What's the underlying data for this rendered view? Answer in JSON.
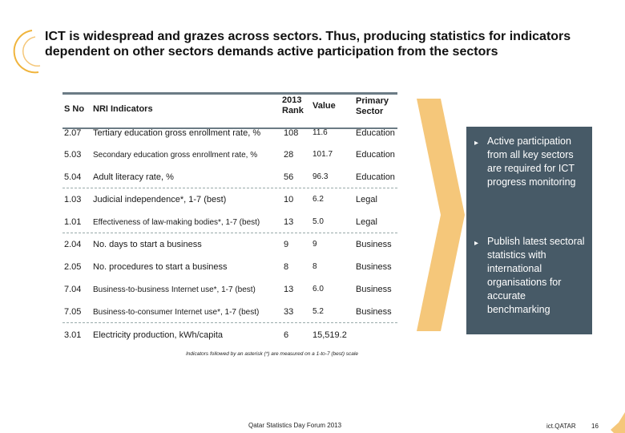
{
  "title": "ICT is widespread and grazes across sectors. Thus, producing statistics for indicators dependent on other sectors demands active participation from the sectors",
  "table": {
    "headers": {
      "sno": "S No",
      "indicator": "NRI Indicators",
      "rank_line1": "2013",
      "rank_line2": "Rank",
      "value": "Value",
      "sector_line1": "Primary",
      "sector_line2": "Sector"
    },
    "rows": [
      {
        "sno": "2.07",
        "indicator": "Tertiary education gross enrollment rate, %",
        "rank": "108",
        "value": "11.6",
        "sector": "Education"
      },
      {
        "sno": "5.03",
        "indicator": "Secondary education gross enrollment rate, %",
        "rank": "28",
        "value": "101.7",
        "sector": "Education"
      },
      {
        "sno": "5.04",
        "indicator": "Adult literacy rate, %",
        "rank": "56",
        "value": "96.3",
        "sector": "Education"
      },
      {
        "sno": "1.03",
        "indicator": "Judicial independence*, 1-7 (best)",
        "rank": "10",
        "value": "6.2",
        "sector": "Legal"
      },
      {
        "sno": "1.01",
        "indicator": "Effectiveness of law-making bodies*, 1-7 (best)",
        "rank": "13",
        "value": "5.0",
        "sector": "Legal"
      },
      {
        "sno": "2.04",
        "indicator": "No. days to start a business",
        "rank": "9",
        "value": "9",
        "sector": "Business"
      },
      {
        "sno": "2.05",
        "indicator": "No. procedures to start a business",
        "rank": "8",
        "value": "8",
        "sector": "Business"
      },
      {
        "sno": "7.04",
        "indicator": "Business-to-business Internet use*, 1-7 (best)",
        "rank": "13",
        "value": "6.0",
        "sector": "Business"
      },
      {
        "sno": "7.05",
        "indicator": "Business-to-consumer Internet use*, 1-7 (best)",
        "rank": "33",
        "value": "5.2",
        "sector": "Business"
      },
      {
        "sno": "3.01",
        "indicator": "Electricity production, kWh/capita",
        "rank": "6",
        "value": "15,519.2",
        "sector": ""
      }
    ]
  },
  "footnote": "Indicators followed by an asterisk (*) are measured on a 1-to-7 (best) scale",
  "panel": {
    "bullets": [
      "Active participation from all key sectors are required for ICT progress monitoring",
      "Publish latest sectoral statistics with international organisations for accurate benchmarking"
    ]
  },
  "footer": {
    "event": "Qatar Statistics Day Forum 2013",
    "brand": "ict.QATAR",
    "page": "16"
  },
  "colors": {
    "accent_orange": "#f0b43c",
    "chevron_fill": "#f5c77a",
    "panel_bg": "#475a67",
    "rule": "#6b7b85"
  }
}
